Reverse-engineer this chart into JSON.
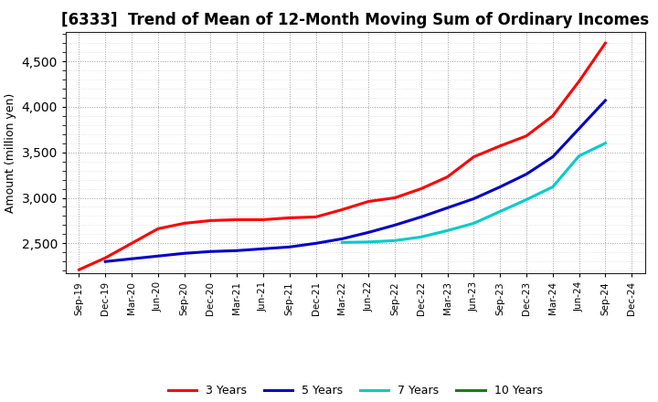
{
  "title": "[6333]  Trend of Mean of 12-Month Moving Sum of Ordinary Incomes",
  "ylabel": "Amount (million yen)",
  "background_color": "#ffffff",
  "grid_color": "#999999",
  "x_labels": [
    "Sep-19",
    "Dec-19",
    "Mar-20",
    "Jun-20",
    "Sep-20",
    "Dec-20",
    "Mar-21",
    "Jun-21",
    "Sep-21",
    "Dec-21",
    "Mar-22",
    "Jun-22",
    "Sep-22",
    "Dec-22",
    "Mar-23",
    "Jun-23",
    "Sep-23",
    "Dec-23",
    "Mar-24",
    "Jun-24",
    "Sep-24",
    "Dec-24"
  ],
  "ylim": [
    2170,
    4820
  ],
  "yticks": [
    2500,
    3000,
    3500,
    4000,
    4500
  ],
  "series": {
    "3 Years": {
      "color": "#ff0000",
      "data_x": [
        0,
        1,
        2,
        3,
        4,
        5,
        6,
        7,
        8,
        9,
        10,
        11,
        12,
        13,
        14,
        15,
        16,
        17,
        18,
        19,
        20
      ],
      "data_y": [
        2210,
        2340,
        2500,
        2660,
        2720,
        2750,
        2760,
        2760,
        2780,
        2790,
        2870,
        2960,
        3000,
        3100,
        3230,
        3450,
        3570,
        3680,
        3900,
        4280,
        4700
      ]
    },
    "5 Years": {
      "color": "#0000cc",
      "data_x": [
        1,
        2,
        3,
        4,
        5,
        6,
        7,
        8,
        9,
        10,
        11,
        12,
        13,
        14,
        15,
        16,
        17,
        18,
        19,
        20
      ],
      "data_y": [
        2300,
        2330,
        2360,
        2390,
        2410,
        2420,
        2440,
        2460,
        2500,
        2550,
        2620,
        2700,
        2790,
        2890,
        2990,
        3120,
        3260,
        3450,
        3760,
        4070
      ]
    },
    "7 Years": {
      "color": "#00cccc",
      "data_x": [
        10,
        11,
        12,
        13,
        14,
        15,
        16,
        17,
        18,
        19,
        20
      ],
      "data_y": [
        2510,
        2515,
        2530,
        2570,
        2640,
        2720,
        2850,
        2980,
        3120,
        3460,
        3600
      ]
    },
    "10 Years": {
      "color": "#008800",
      "data_x": [],
      "data_y": []
    }
  },
  "legend_labels": [
    "3 Years",
    "5 Years",
    "7 Years",
    "10 Years"
  ],
  "legend_colors": [
    "#ff0000",
    "#0000cc",
    "#00cccc",
    "#008800"
  ],
  "title_fontsize": 12,
  "tick_fontsize": 7.5,
  "ylabel_fontsize": 9,
  "legend_fontsize": 9,
  "linewidth": 2.2
}
